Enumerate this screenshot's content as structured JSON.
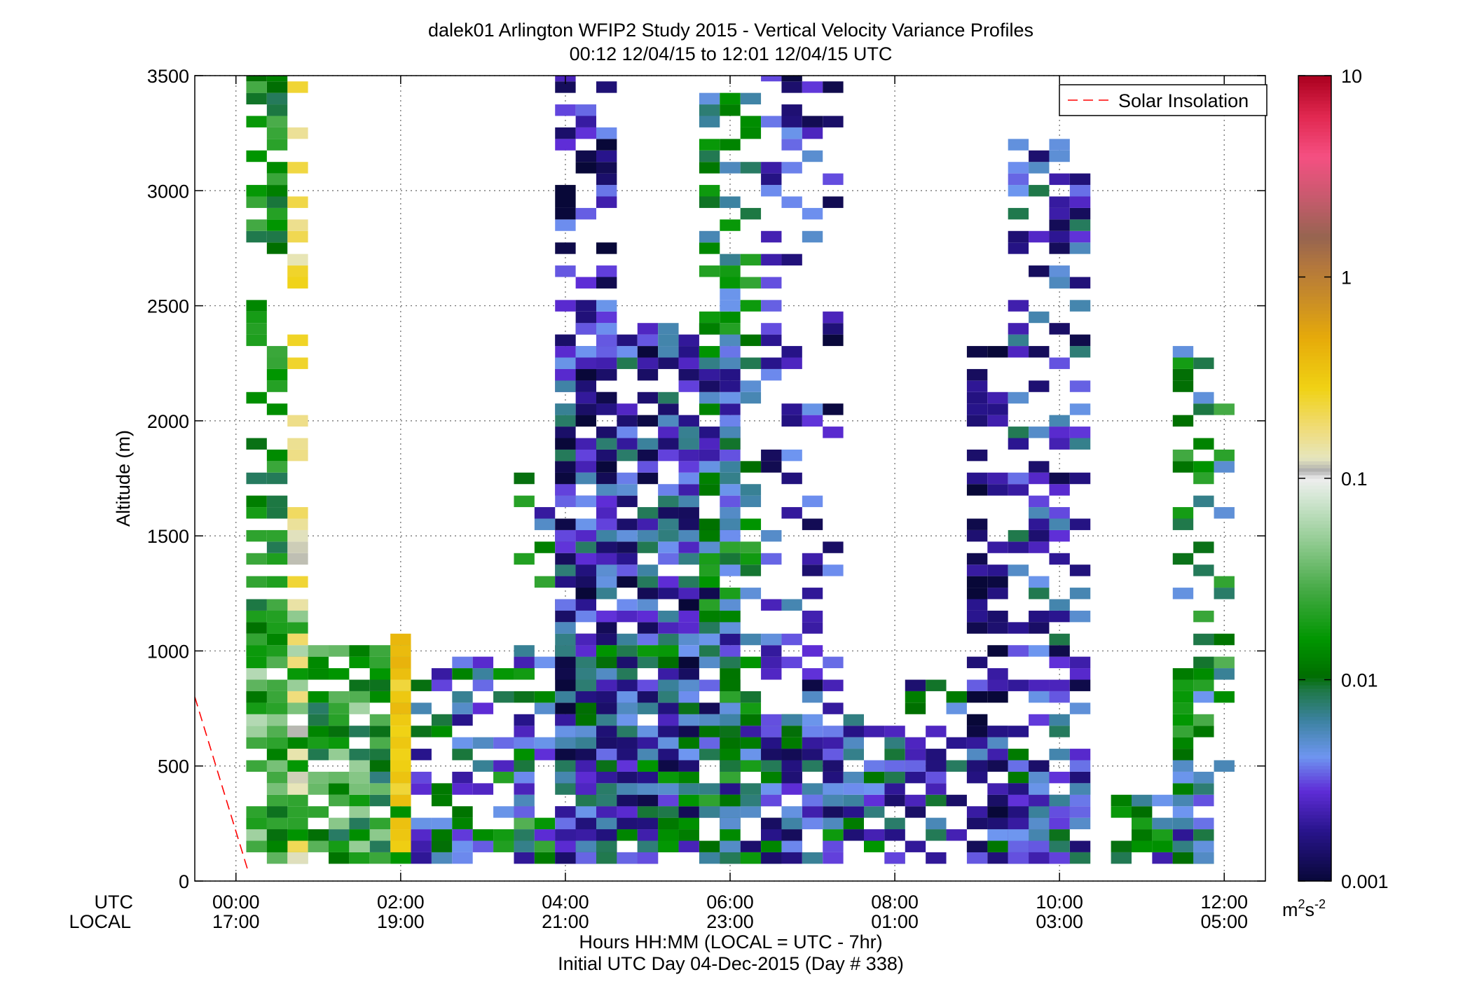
{
  "chart_data": {
    "type": "heatmap",
    "title_line1": "dalek01 Arlington WFIP2 Study 2015 - Vertical Velocity Variance Profiles",
    "title_line2": "00:12 12/04/15 to 12:01 12/04/15  UTC",
    "ylabel": "Altitude (m)",
    "xlabel": "Hours HH:MM  (LOCAL = UTC - 7hr)",
    "xlabel2": "Initial UTC Day 04-Dec-2015 (Day # 338)",
    "row_label_utc": "UTC",
    "row_label_local": "LOCAL",
    "x_ticks_utc": [
      "00:00",
      "02:00",
      "04:00",
      "06:00",
      "08:00",
      "10:00",
      "12:00"
    ],
    "x_ticks_local": [
      "17:00",
      "19:00",
      "21:00",
      "23:00",
      "01:00",
      "03:00",
      "05:00"
    ],
    "x_tick_hours": [
      0,
      2,
      4,
      6,
      8,
      10,
      12
    ],
    "xlim_hours": [
      -0.5,
      12.5
    ],
    "y_ticks": [
      0,
      500,
      1000,
      1500,
      2000,
      2500,
      3000,
      3500
    ],
    "ylim": [
      0,
      3500
    ],
    "grid": true,
    "legend": {
      "label": "Solar Insolation",
      "style": "red dashed",
      "position": "top-right"
    },
    "colorbar": {
      "scale": "log",
      "ticks": [
        "10",
        "1",
        "0.1",
        "0.01",
        "0.001"
      ],
      "tick_values": [
        10,
        1,
        0.1,
        0.01,
        0.001
      ],
      "range": [
        0.001,
        10
      ],
      "units_base": "m",
      "units_sup1": "2",
      "units_mid": "s",
      "units_sup2": "-2"
    },
    "solar_insolation_line": [
      [
        -0.5,
        800
      ],
      [
        0.15,
        40
      ]
    ],
    "profile_interval_hours": 0.25,
    "gate_height_m": 50,
    "first_gate_m": 100,
    "notes": "values are vertical velocity variance m^2 s^-2 estimated from colors; cells listed as [hour, altitude_m, variance]",
    "cells": []
  }
}
